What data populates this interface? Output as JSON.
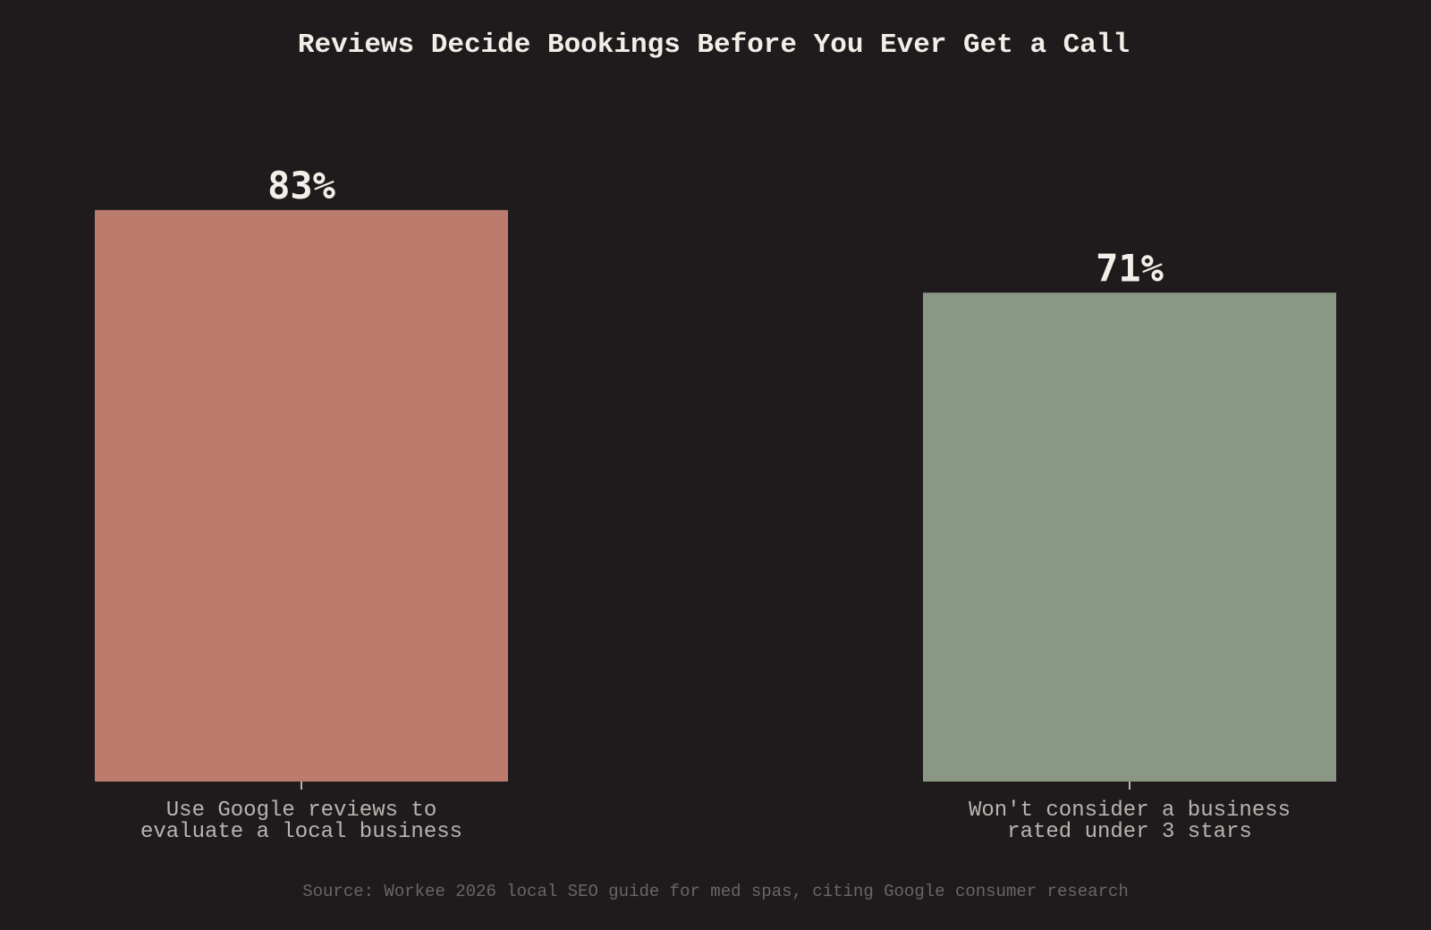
{
  "chart_data": {
    "type": "bar",
    "title": "Reviews Decide Bookings Before You Ever Get a Call",
    "categories": [
      [
        "Use Google reviews to",
        "evaluate a local business"
      ],
      [
        "Won't consider a business",
        "rated under 3 stars"
      ]
    ],
    "values": [
      83,
      71
    ],
    "value_labels": [
      "83%",
      "71%"
    ],
    "colors": [
      "#bb7b6d",
      "#8b9785"
    ],
    "ylim": [
      0,
      100
    ],
    "xlabel": "",
    "ylabel": "",
    "grid": false,
    "source": "Source: Workee 2026 local SEO guide for med spas, citing Google consumer research"
  }
}
